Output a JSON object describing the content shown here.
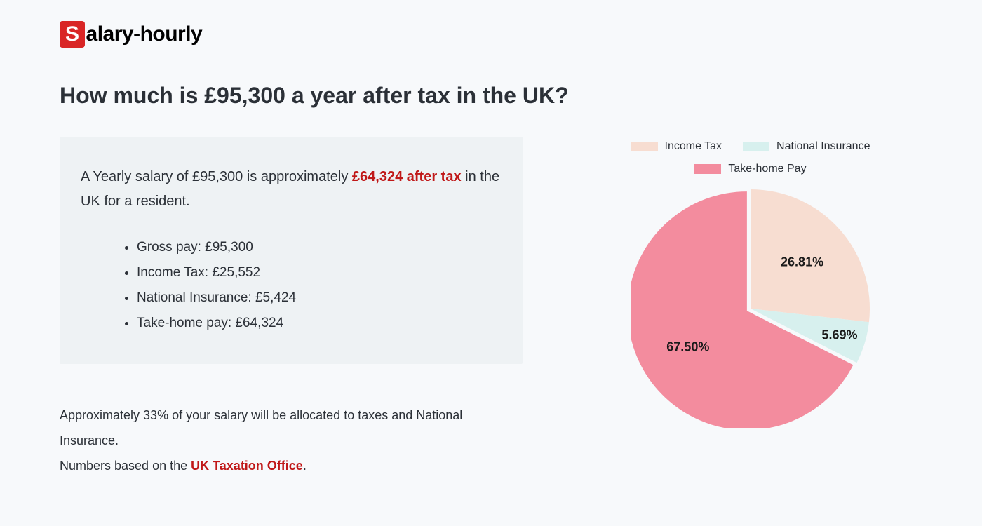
{
  "logo": {
    "prefix": "S",
    "rest": "alary-hourly"
  },
  "heading": "How much is £95,300 a year after tax in the UK?",
  "summary": {
    "text_before": "A Yearly salary of £95,300 is approximately ",
    "highlight": "£64,324 after tax",
    "text_after": " in the UK for a resident.",
    "items": [
      "Gross pay: £95,300",
      "Income Tax: £25,552",
      "National Insurance: £5,424",
      "Take-home pay: £64,324"
    ]
  },
  "footnote": {
    "line1": "Approximately 33% of your salary will be allocated to taxes and National Insurance.",
    "line2_before": "Numbers based on the ",
    "link": "UK Taxation Office",
    "line2_after": "."
  },
  "chart": {
    "type": "pie",
    "radius": 170,
    "background": "#f7f9fb",
    "slices": [
      {
        "label": "Income Tax",
        "value": 26.81,
        "color": "#f7ddd1",
        "pct_text": "26.81%"
      },
      {
        "label": "National Insurance",
        "value": 5.69,
        "color": "#d7f0ee",
        "pct_text": "5.69%"
      },
      {
        "label": "Take-home Pay",
        "value": 67.5,
        "color": "#f38c9e",
        "pct_text": "67.50%"
      }
    ],
    "pull_out": 6,
    "label_font_size": 18,
    "label_font_weight": 700,
    "label_color": "#1a1a1a",
    "legend_swatch_w": 38,
    "legend_swatch_h": 14,
    "legend_font_size": 16
  }
}
